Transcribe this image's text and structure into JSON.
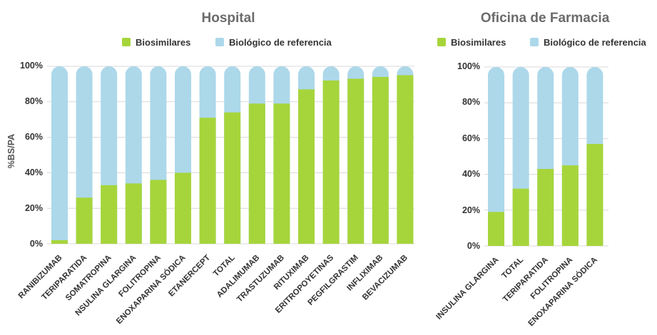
{
  "colors": {
    "biosimilares": "#a6d53b",
    "referencia": "#acd8ea"
  },
  "chart_data": [
    {
      "type": "bar",
      "stacked": true,
      "title": "Hospital",
      "ylabel": "%BS/PA",
      "xlabel": "",
      "ylim": [
        0,
        100
      ],
      "yticks": [
        "0%",
        "20%",
        "40%",
        "60%",
        "80%",
        "100%"
      ],
      "legend": [
        "Biosimilares",
        "Biológico de referencia"
      ],
      "legend_position": "top",
      "grid": true,
      "categories": [
        "RANIBIZUMAB",
        "TERIPARATIDA",
        "SOMATROPINA",
        "NSULINA GLARGINA",
        "FOLITROPINA",
        "ENOXAPARINA SÓDICA",
        "ETANERCEPT",
        "TOTAL",
        "ADALIMUMAB",
        "TRASTUZUMAB",
        "RITUXIMAB",
        "ERITROPOYETINAS",
        "PEGFILGRASTIM",
        "INFLIXIMAB",
        "BEVACIZUMAB"
      ],
      "series": [
        {
          "name": "Biosimilares",
          "values": [
            2,
            26,
            33,
            34,
            36,
            40,
            71,
            74,
            79,
            79,
            87,
            92,
            93,
            94,
            95
          ]
        },
        {
          "name": "Biológico de referencia",
          "values": [
            98,
            74,
            67,
            66,
            64,
            60,
            29,
            26,
            21,
            21,
            13,
            8,
            7,
            6,
            5
          ]
        }
      ]
    },
    {
      "type": "bar",
      "stacked": true,
      "title": "Oficina de Farmacia",
      "ylabel": "",
      "xlabel": "",
      "ylim": [
        0,
        100
      ],
      "yticks": [
        "0%",
        "20%",
        "40%",
        "60%",
        "80%",
        "100%"
      ],
      "legend": [
        "Biosimilares",
        "Biológico de referencia"
      ],
      "legend_position": "top",
      "grid": true,
      "categories": [
        "INSULINA GLARGINA",
        "TOTAL",
        "TERIPARATIDA",
        "FOLITROPINA",
        "ENOXAPARINA SÓDICA"
      ],
      "series": [
        {
          "name": "Biosimilares",
          "values": [
            19,
            32,
            43,
            45,
            57
          ]
        },
        {
          "name": "Biológico de referencia",
          "values": [
            81,
            68,
            57,
            55,
            43
          ]
        }
      ]
    }
  ]
}
